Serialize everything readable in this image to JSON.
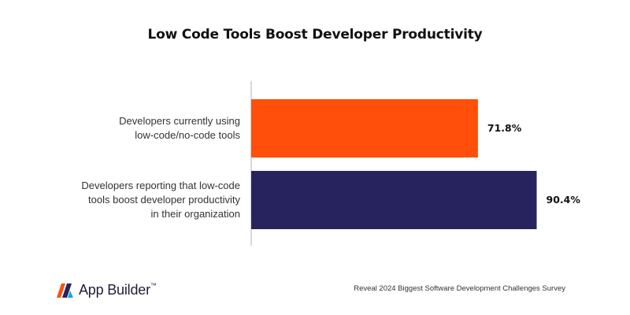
{
  "chart_data": {
    "type": "bar",
    "orientation": "horizontal",
    "title": "Low Code Tools Boost Developer Productivity",
    "categories": [
      "Developers currently using low-code/no-code tools",
      "Developers reporting that low-code tools boost developer productivity in their organization"
    ],
    "category_lines": [
      [
        "Developers currently using",
        "low-code/no-code tools"
      ],
      [
        "Developers reporting that low-code",
        "tools boost developer productivity",
        "in their organization"
      ]
    ],
    "values": [
      71.8,
      90.4
    ],
    "value_labels": [
      "71.8%",
      "90.4%"
    ],
    "colors": [
      "#ff4f0a",
      "#27235f"
    ],
    "xlim": [
      0,
      100
    ],
    "grid": false,
    "legend": "none"
  },
  "footer": {
    "brand": "App Builder",
    "brand_mark": "™",
    "source": "Reveal 2024 Biggest Software Development Challenges Survey"
  }
}
